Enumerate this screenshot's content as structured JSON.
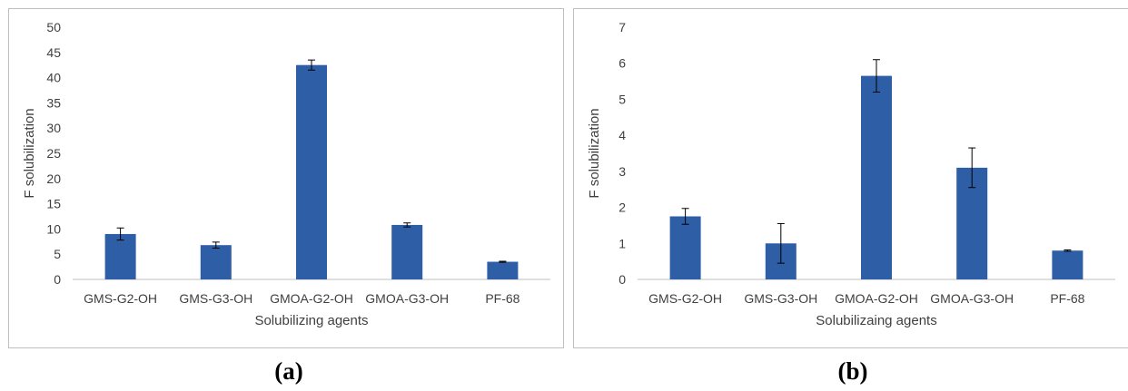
{
  "chart_data": [
    {
      "type": "bar",
      "title": "",
      "xlabel": "Solubilizing agents",
      "ylabel": "F solubilization",
      "ylim": [
        0,
        50
      ],
      "yticks": [
        0,
        5,
        10,
        15,
        20,
        25,
        30,
        35,
        40,
        45,
        50
      ],
      "categories": [
        "GMS-G2-OH",
        "GMS-G3-OH",
        "GMOA-G2-OH",
        "GMOA-G3-OH",
        "PF-68"
      ],
      "values": [
        9.0,
        6.8,
        42.5,
        10.8,
        3.5
      ],
      "errors": [
        1.2,
        0.6,
        1.0,
        0.4,
        0.1
      ],
      "color": "#2e5ea6",
      "grid": false,
      "caption": "(a)"
    },
    {
      "type": "bar",
      "title": "",
      "xlabel": "Solubilizaing agents",
      "ylabel": "F solubilization",
      "ylim": [
        0,
        7
      ],
      "yticks": [
        0,
        1,
        2,
        3,
        4,
        5,
        6,
        7
      ],
      "categories": [
        "GMS-G2-OH",
        "GMS-G3-OH",
        "GMOA-G2-OH",
        "GMOA-G3-OH",
        "PF-68"
      ],
      "values": [
        1.75,
        1.0,
        5.65,
        3.1,
        0.8
      ],
      "errors": [
        0.22,
        0.55,
        0.45,
        0.55,
        0.02
      ],
      "color": "#2e5ea6",
      "grid": false,
      "caption": "(b)"
    }
  ]
}
